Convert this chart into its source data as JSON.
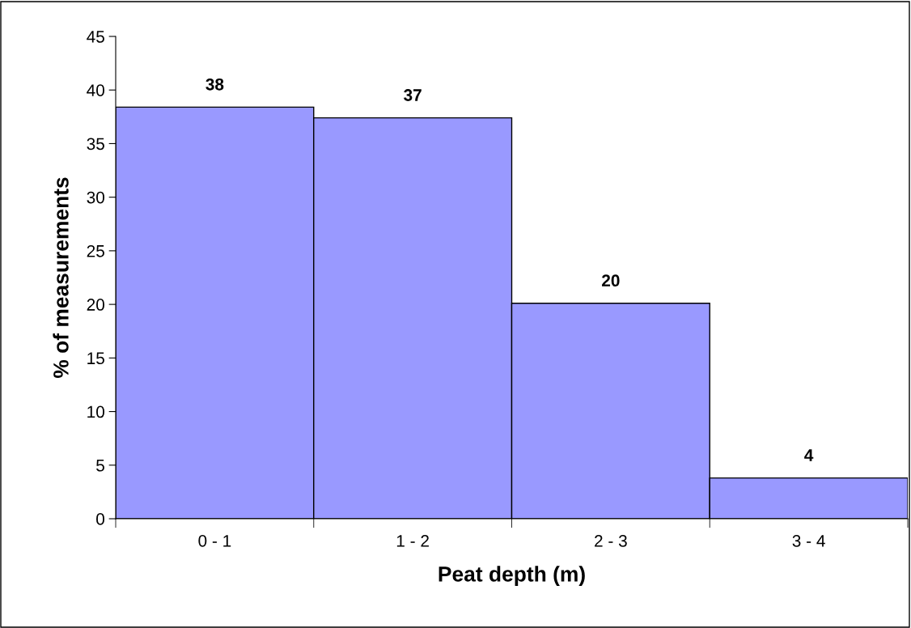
{
  "chart_data": {
    "type": "bar",
    "xlabel": "Peat depth (m)",
    "ylabel": "% of measurements",
    "categories": [
      "0 - 1",
      "1 - 2",
      "2 - 3",
      "3 - 4"
    ],
    "values": [
      38.4,
      37.4,
      20.1,
      3.8
    ],
    "value_labels": [
      "38",
      "37",
      "20",
      "4"
    ],
    "color": "#9999ff",
    "ylim": [
      0,
      45
    ],
    "yticks": [
      0,
      5,
      10,
      15,
      20,
      25,
      30,
      35,
      40,
      45
    ],
    "grid": false,
    "legend": false
  }
}
